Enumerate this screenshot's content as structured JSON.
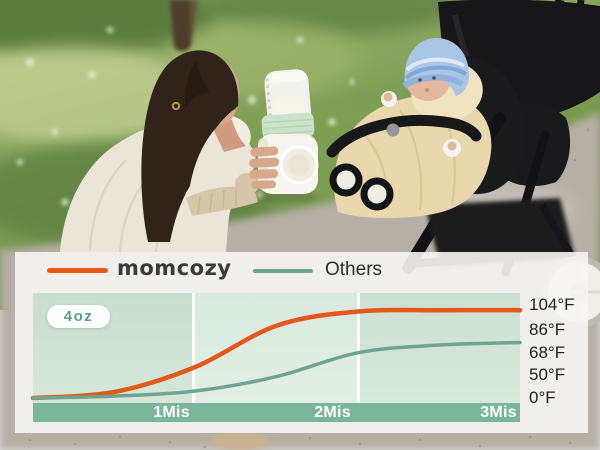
{
  "badge": {
    "label": "4oz"
  },
  "chart_data": {
    "type": "line",
    "title": "",
    "xlabel": "",
    "ylabel": "",
    "x_unit": "minutes",
    "xticks": [
      {
        "label": "1Mis",
        "minute": 1
      },
      {
        "label": "2Mis",
        "minute": 2
      },
      {
        "label": "3Mis",
        "minute": 3
      }
    ],
    "yticks": [
      {
        "label": "104°F",
        "value": 104
      },
      {
        "label": "86°F",
        "value": 86
      },
      {
        "label": "68°F",
        "value": 68
      },
      {
        "label": "50°F",
        "value": 50
      },
      {
        "label": "0°F",
        "value": 0
      }
    ],
    "y_axis_note": "non-linear scale: tick labels evenly spaced",
    "x": [
      0,
      0.5,
      1,
      1.5,
      2,
      2.5,
      3
    ],
    "series": [
      {
        "name": "momcozy",
        "color": "#E5581C",
        "values": [
          0,
          13,
          56,
          88,
          99,
          100,
          100
        ]
      },
      {
        "name": "Others",
        "color": "#6FA490",
        "values": [
          0,
          4,
          15,
          46,
          67,
          73,
          75
        ]
      }
    ],
    "legend_position": "top",
    "grid": false
  },
  "colors": {
    "accent_orange": "#E5581C",
    "teal_line": "#6FA490",
    "axis_band_green": "#7AB69A",
    "panel_green": "#CDE0D4",
    "badge_text_green": "#54A081"
  }
}
